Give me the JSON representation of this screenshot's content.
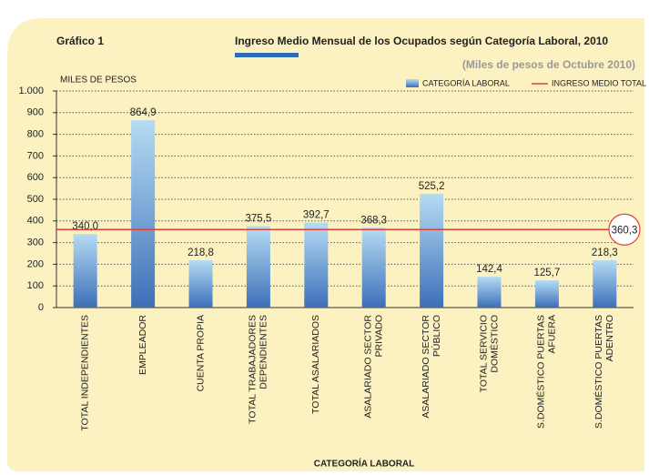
{
  "chart_data": {
    "type": "bar",
    "label": "Gráfico 1",
    "title": "Ingreso Medio Mensual de los Ocupados según Categoría Laboral, 2010",
    "subtitle": "(Miles de pesos de Octubre 2010)",
    "y_axis_label": "MILES DE PESOS",
    "x_axis_label": "CATEGORÍA LABORAL",
    "categories": [
      [
        "TOTAL INDEPENDIENTES"
      ],
      [
        "EMPLEADOR"
      ],
      [
        "CUENTA PROPIA"
      ],
      [
        "TOTAL TRABAJADORES",
        "DEPENDIENTES"
      ],
      [
        "TOTAL ASALARIADOS"
      ],
      [
        "ASALARIADO SECTOR",
        "PRIVADO"
      ],
      [
        "ASALARIADO SECTOR",
        "PÚBLICO"
      ],
      [
        "TOTAL SERVICIO",
        "DOMÉSTICO"
      ],
      [
        "S.DOMÉSTICO PUERTAS",
        "AFUERA"
      ],
      [
        "S.DOMÉSTICO PUERTAS",
        "ADENTRO"
      ]
    ],
    "series": [
      {
        "name": "CATEGORÍA LABORAL",
        "color": "#3d6fb8",
        "values": [
          340.0,
          864.9,
          218.8,
          375.5,
          392.7,
          368.3,
          525.2,
          142.4,
          125.7,
          218.3
        ],
        "value_labels": [
          "340,0",
          "864,9",
          "218,8",
          "375,5",
          "392,7",
          "368,3",
          "525,2",
          "142,4",
          "125,7",
          "218,3"
        ]
      }
    ],
    "reference_line": {
      "name": "INGRESO MEDIO TOTAL",
      "value": 360.3,
      "value_label": "360,3",
      "color": "#e0403a"
    },
    "ylim": [
      0,
      1000
    ],
    "yticks": [
      0,
      100,
      200,
      300,
      400,
      500,
      600,
      700,
      800,
      900,
      {
        "value": 1000,
        "label": "1.000"
      }
    ],
    "grid": true
  }
}
